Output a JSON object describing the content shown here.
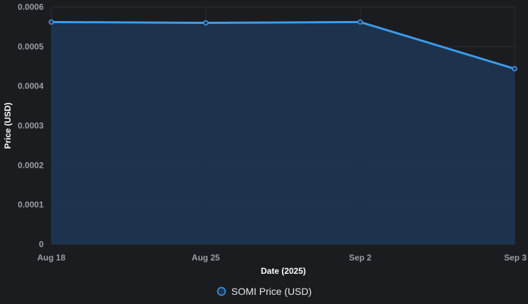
{
  "chart_data": {
    "type": "area",
    "x": [
      "Aug 18",
      "Aug 25",
      "Sep 2",
      "Sep 3"
    ],
    "series": [
      {
        "name": "SOMI Price (USD)",
        "values": [
          0.000562,
          0.00056,
          0.000562,
          0.000444
        ],
        "color": "#3b9cec",
        "fill": "#1e3550"
      }
    ],
    "xlabel": "Date (2025)",
    "ylabel": "Price (USD)",
    "ylim": [
      0,
      0.0006
    ],
    "yticks": [
      0,
      0.0001,
      0.0002,
      0.0003,
      0.0004,
      0.0005,
      0.0006
    ],
    "ytick_labels": [
      "0",
      "0.0001",
      "0.0002",
      "0.0003",
      "0.0004",
      "0.0005",
      "0.0006"
    ],
    "grid": true,
    "legend_position": "bottom-center"
  },
  "colors": {
    "background": "#1b1c20",
    "grid": "#2b2e35",
    "tick_text": "#9a9ea6",
    "axis_title": "#ffffff",
    "legend_text": "#e8e8ea"
  }
}
